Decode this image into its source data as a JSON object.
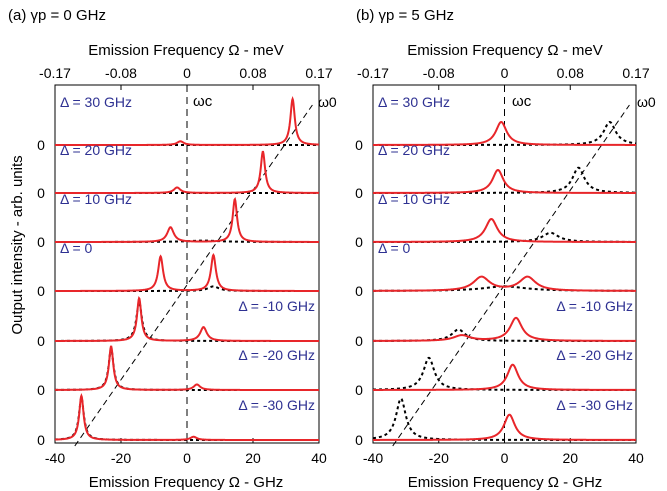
{
  "figure": {
    "ylabel": "Output intensity - arb. units",
    "top_xlabel": "Emission Frequency Ω - meV",
    "bottom_xlabel": "Emission Frequency Ω - GHz",
    "omega_c_label": "ωc",
    "omega_0_label": "ω0"
  },
  "colors": {
    "red_curve": "#e8262a",
    "dotted_curve": "#000000",
    "label_blue": "#2e3192"
  },
  "chart_data": [
    {
      "type": "line",
      "title": "(a) γp = 0 GHz",
      "xlabel": "Emission Frequency Ω - GHz",
      "x2label": "Emission Frequency Ω - meV",
      "ylabel": "Output intensity - arb. units",
      "xlim": [
        -40,
        40
      ],
      "xticks": [
        "-40",
        "-20",
        "0",
        "20",
        "40"
      ],
      "top_xticks": [
        "-0.17",
        "-0.08",
        "0",
        "0.08",
        "0.17"
      ],
      "y_baseline_label": "0",
      "linewidth_ghz": 0.8,
      "series": [
        {
          "detuning_label": "Δ = 30 GHz",
          "peaks": [
            {
              "x": -2.0,
              "amp": 0.08,
              "w": 1.2
            },
            {
              "x": 32.0,
              "amp": 1.0,
              "w": 0.8
            }
          ],
          "dotted_peaks": []
        },
        {
          "detuning_label": "Δ = 20 GHz",
          "peaks": [
            {
              "x": -3.0,
              "amp": 0.12,
              "w": 1.2
            },
            {
              "x": 23.0,
              "amp": 0.9,
              "w": 0.8
            }
          ],
          "dotted_peaks": []
        },
        {
          "detuning_label": "Δ = 10 GHz",
          "peaks": [
            {
              "x": -5.0,
              "amp": 0.32,
              "w": 1.2
            },
            {
              "x": 14.5,
              "amp": 0.93,
              "w": 0.8
            }
          ],
          "dotted_peaks": [
            {
              "x": 5.0,
              "amp": 0.03,
              "w": 6.0
            }
          ]
        },
        {
          "detuning_label": "Δ = 0",
          "peaks": [
            {
              "x": -8.0,
              "amp": 0.75,
              "w": 0.9
            },
            {
              "x": 8.0,
              "amp": 0.78,
              "w": 0.9
            }
          ],
          "dotted_peaks": [
            {
              "x": 8.0,
              "amp": 0.1,
              "w": 2.0
            }
          ]
        },
        {
          "detuning_label": "Δ = -10 GHz",
          "peaks": [
            {
              "x": -14.5,
              "amp": 0.93,
              "w": 0.8
            },
            {
              "x": 5.0,
              "amp": 0.3,
              "w": 1.2
            }
          ],
          "dotted_peaks": [
            {
              "x": -14.5,
              "amp": 0.85,
              "w": 1.0
            }
          ]
        },
        {
          "detuning_label": "Δ = -20 GHz",
          "peaks": [
            {
              "x": -23.0,
              "amp": 0.95,
              "w": 0.8
            },
            {
              "x": 3.0,
              "amp": 0.12,
              "w": 1.2
            }
          ],
          "dotted_peaks": [
            {
              "x": -23.0,
              "amp": 0.9,
              "w": 0.9
            }
          ]
        },
        {
          "detuning_label": "Δ = -30 GHz",
          "peaks": [
            {
              "x": -32.0,
              "amp": 0.96,
              "w": 0.8
            },
            {
              "x": 2.0,
              "amp": 0.07,
              "w": 1.2
            }
          ],
          "dotted_peaks": [
            {
              "x": -32.0,
              "amp": 0.92,
              "w": 0.9
            }
          ]
        }
      ]
    },
    {
      "type": "line",
      "title": "(b) γp = 5 GHz",
      "xlabel": "Emission Frequency Ω - GHz",
      "x2label": "Emission Frequency Ω - meV",
      "ylabel": "",
      "xlim": [
        -40,
        40
      ],
      "xticks": [
        "-40",
        "-20",
        "0",
        "20",
        "40"
      ],
      "top_xticks": [
        "-0.17",
        "-0.08",
        "0",
        "0.08",
        "0.17"
      ],
      "y_baseline_label": "0",
      "series": [
        {
          "detuning_label": "Δ = 30 GHz",
          "peaks": [
            {
              "x": -1.0,
              "amp": 0.5,
              "w": 2.0
            }
          ],
          "dotted_peaks": [
            {
              "x": 32.0,
              "amp": 0.5,
              "w": 2.2
            }
          ]
        },
        {
          "detuning_label": "Δ = 20 GHz",
          "peaks": [
            {
              "x": -2.0,
              "amp": 0.5,
              "w": 2.0
            }
          ],
          "dotted_peaks": [
            {
              "x": 22.5,
              "amp": 0.55,
              "w": 2.2
            }
          ]
        },
        {
          "detuning_label": "Δ = 10 GHz",
          "peaks": [
            {
              "x": -4.0,
              "amp": 0.5,
              "w": 2.2
            }
          ],
          "dotted_peaks": [
            {
              "x": 14.0,
              "amp": 0.2,
              "w": 3.0
            }
          ]
        },
        {
          "detuning_label": "Δ = 0",
          "peaks": [
            {
              "x": -7.0,
              "amp": 0.3,
              "w": 3.0
            },
            {
              "x": 7.0,
              "amp": 0.3,
              "w": 3.0
            }
          ],
          "dotted_peaks": [
            {
              "x": 0.0,
              "amp": 0.1,
              "w": 8.0
            }
          ]
        },
        {
          "detuning_label": "Δ = -10 GHz",
          "peaks": [
            {
              "x": -13.0,
              "amp": 0.12,
              "w": 3.0
            },
            {
              "x": 3.5,
              "amp": 0.5,
              "w": 2.2
            }
          ],
          "dotted_peaks": [
            {
              "x": -14.0,
              "amp": 0.25,
              "w": 2.5
            }
          ]
        },
        {
          "detuning_label": "Δ = -20 GHz",
          "peaks": [
            {
              "x": 2.5,
              "amp": 0.55,
              "w": 2.0
            }
          ],
          "dotted_peaks": [
            {
              "x": -23.0,
              "amp": 0.7,
              "w": 2.0
            }
          ]
        },
        {
          "detuning_label": "Δ = -30 GHz",
          "peaks": [
            {
              "x": 1.5,
              "amp": 0.55,
              "w": 2.0
            }
          ],
          "dotted_peaks": [
            {
              "x": -31.5,
              "amp": 0.9,
              "w": 1.8
            }
          ]
        }
      ]
    }
  ]
}
